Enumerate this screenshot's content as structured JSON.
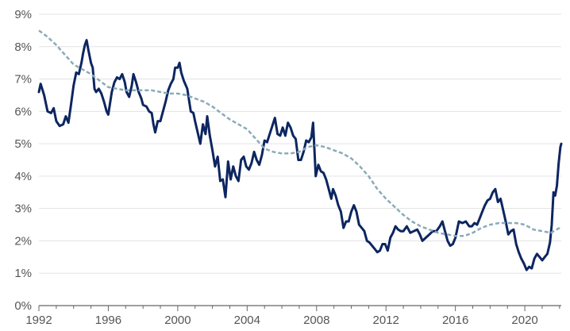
{
  "chart_data": {
    "type": "line",
    "title": "",
    "xlabel": "",
    "ylabel": "",
    "xlim": [
      1992,
      2022.1
    ],
    "ylim": [
      0,
      9
    ],
    "grid": "horizontal",
    "legend": "none",
    "y_ticks": [
      {
        "value": 0,
        "label": "0%"
      },
      {
        "value": 1,
        "label": "1%"
      },
      {
        "value": 2,
        "label": "2%"
      },
      {
        "value": 3,
        "label": "3%"
      },
      {
        "value": 4,
        "label": "4%"
      },
      {
        "value": 5,
        "label": "5%"
      },
      {
        "value": 6,
        "label": "6%"
      },
      {
        "value": 7,
        "label": "7%"
      },
      {
        "value": 8,
        "label": "8%"
      },
      {
        "value": 9,
        "label": "9%"
      }
    ],
    "x_ticks": [
      {
        "value": 1992,
        "label": "1992"
      },
      {
        "value": 1996,
        "label": "1996"
      },
      {
        "value": 2000,
        "label": "2000"
      },
      {
        "value": 2004,
        "label": "2004"
      },
      {
        "value": 2008,
        "label": "2008"
      },
      {
        "value": 2012,
        "label": "2012"
      },
      {
        "value": 2016,
        "label": "2016"
      },
      {
        "value": 2020,
        "label": "2020"
      }
    ],
    "series": [
      {
        "style": "solid",
        "color": "#0d2660",
        "points": [
          [
            1992.0,
            6.6
          ],
          [
            1992.1,
            6.85
          ],
          [
            1992.3,
            6.5
          ],
          [
            1992.5,
            6.0
          ],
          [
            1992.7,
            5.95
          ],
          [
            1992.85,
            6.1
          ],
          [
            1993.0,
            5.7
          ],
          [
            1993.2,
            5.55
          ],
          [
            1993.4,
            5.6
          ],
          [
            1993.55,
            5.85
          ],
          [
            1993.7,
            5.65
          ],
          [
            1993.85,
            6.2
          ],
          [
            1994.0,
            6.8
          ],
          [
            1994.15,
            7.2
          ],
          [
            1994.3,
            7.15
          ],
          [
            1994.45,
            7.5
          ],
          [
            1994.55,
            7.8
          ],
          [
            1994.65,
            8.05
          ],
          [
            1994.75,
            8.2
          ],
          [
            1994.85,
            7.9
          ],
          [
            1995.0,
            7.5
          ],
          [
            1995.1,
            7.35
          ],
          [
            1995.2,
            6.7
          ],
          [
            1995.3,
            6.6
          ],
          [
            1995.45,
            6.7
          ],
          [
            1995.6,
            6.55
          ],
          [
            1995.75,
            6.3
          ],
          [
            1995.9,
            6.0
          ],
          [
            1996.0,
            5.9
          ],
          [
            1996.2,
            6.6
          ],
          [
            1996.35,
            6.9
          ],
          [
            1996.5,
            7.05
          ],
          [
            1996.65,
            7.0
          ],
          [
            1996.8,
            7.15
          ],
          [
            1996.95,
            6.9
          ],
          [
            1997.05,
            6.6
          ],
          [
            1997.2,
            6.45
          ],
          [
            1997.35,
            6.8
          ],
          [
            1997.45,
            7.15
          ],
          [
            1997.6,
            6.9
          ],
          [
            1997.75,
            6.6
          ],
          [
            1997.9,
            6.4
          ],
          [
            1998.0,
            6.2
          ],
          [
            1998.2,
            6.15
          ],
          [
            1998.35,
            6.0
          ],
          [
            1998.5,
            5.95
          ],
          [
            1998.6,
            5.6
          ],
          [
            1998.7,
            5.35
          ],
          [
            1998.85,
            5.7
          ],
          [
            1999.0,
            5.7
          ],
          [
            1999.15,
            6.0
          ],
          [
            1999.3,
            6.3
          ],
          [
            1999.45,
            6.65
          ],
          [
            1999.6,
            6.85
          ],
          [
            1999.75,
            7.0
          ],
          [
            1999.85,
            7.35
          ],
          [
            2000.0,
            7.35
          ],
          [
            2000.1,
            7.5
          ],
          [
            2000.2,
            7.2
          ],
          [
            2000.35,
            6.95
          ],
          [
            2000.55,
            6.7
          ],
          [
            2000.75,
            6.0
          ],
          [
            2000.9,
            5.95
          ],
          [
            2001.0,
            5.7
          ],
          [
            2001.15,
            5.35
          ],
          [
            2001.3,
            5.0
          ],
          [
            2001.45,
            5.6
          ],
          [
            2001.6,
            5.3
          ],
          [
            2001.7,
            5.85
          ],
          [
            2001.85,
            5.25
          ],
          [
            2002.0,
            4.8
          ],
          [
            2002.15,
            4.3
          ],
          [
            2002.3,
            4.6
          ],
          [
            2002.45,
            3.85
          ],
          [
            2002.6,
            3.9
          ],
          [
            2002.75,
            3.35
          ],
          [
            2002.9,
            4.45
          ],
          [
            2003.05,
            3.9
          ],
          [
            2003.2,
            4.3
          ],
          [
            2003.35,
            4.0
          ],
          [
            2003.5,
            3.85
          ],
          [
            2003.65,
            4.5
          ],
          [
            2003.8,
            4.6
          ],
          [
            2003.95,
            4.3
          ],
          [
            2004.1,
            4.2
          ],
          [
            2004.25,
            4.4
          ],
          [
            2004.4,
            4.75
          ],
          [
            2004.55,
            4.5
          ],
          [
            2004.7,
            4.35
          ],
          [
            2004.85,
            4.65
          ],
          [
            2005.0,
            5.1
          ],
          [
            2005.15,
            5.05
          ],
          [
            2005.3,
            5.3
          ],
          [
            2005.45,
            5.55
          ],
          [
            2005.6,
            5.8
          ],
          [
            2005.75,
            5.3
          ],
          [
            2005.9,
            5.25
          ],
          [
            2006.05,
            5.5
          ],
          [
            2006.2,
            5.25
          ],
          [
            2006.35,
            5.65
          ],
          [
            2006.5,
            5.5
          ],
          [
            2006.65,
            5.25
          ],
          [
            2006.8,
            5.15
          ],
          [
            2006.95,
            4.5
          ],
          [
            2007.1,
            4.5
          ],
          [
            2007.25,
            4.75
          ],
          [
            2007.4,
            5.1
          ],
          [
            2007.55,
            5.05
          ],
          [
            2007.7,
            5.2
          ],
          [
            2007.8,
            5.65
          ],
          [
            2007.95,
            4.0
          ],
          [
            2008.1,
            4.35
          ],
          [
            2008.25,
            4.15
          ],
          [
            2008.4,
            4.1
          ],
          [
            2008.55,
            3.9
          ],
          [
            2008.7,
            3.6
          ],
          [
            2008.85,
            3.3
          ],
          [
            2008.95,
            3.6
          ],
          [
            2009.1,
            3.4
          ],
          [
            2009.25,
            3.1
          ],
          [
            2009.4,
            2.9
          ],
          [
            2009.55,
            2.4
          ],
          [
            2009.7,
            2.6
          ],
          [
            2009.85,
            2.6
          ],
          [
            2010.0,
            2.9
          ],
          [
            2010.15,
            3.1
          ],
          [
            2010.3,
            2.9
          ],
          [
            2010.45,
            2.5
          ],
          [
            2010.6,
            2.4
          ],
          [
            2010.75,
            2.3
          ],
          [
            2010.9,
            2.0
          ],
          [
            2011.05,
            1.95
          ],
          [
            2011.2,
            1.85
          ],
          [
            2011.35,
            1.75
          ],
          [
            2011.5,
            1.65
          ],
          [
            2011.65,
            1.7
          ],
          [
            2011.8,
            1.9
          ],
          [
            2011.95,
            1.9
          ],
          [
            2012.1,
            1.7
          ],
          [
            2012.25,
            2.1
          ],
          [
            2012.4,
            2.25
          ],
          [
            2012.55,
            2.45
          ],
          [
            2012.7,
            2.35
          ],
          [
            2012.85,
            2.3
          ],
          [
            2013.0,
            2.3
          ],
          [
            2013.2,
            2.45
          ],
          [
            2013.4,
            2.25
          ],
          [
            2013.6,
            2.3
          ],
          [
            2013.8,
            2.35
          ],
          [
            2013.95,
            2.2
          ],
          [
            2014.1,
            2.0
          ],
          [
            2014.3,
            2.1
          ],
          [
            2014.5,
            2.2
          ],
          [
            2014.7,
            2.3
          ],
          [
            2014.9,
            2.3
          ],
          [
            2015.1,
            2.45
          ],
          [
            2015.25,
            2.6
          ],
          [
            2015.4,
            2.3
          ],
          [
            2015.55,
            2.0
          ],
          [
            2015.7,
            1.85
          ],
          [
            2015.85,
            1.9
          ],
          [
            2016.0,
            2.1
          ],
          [
            2016.2,
            2.6
          ],
          [
            2016.4,
            2.55
          ],
          [
            2016.6,
            2.6
          ],
          [
            2016.8,
            2.45
          ],
          [
            2016.95,
            2.45
          ],
          [
            2017.1,
            2.55
          ],
          [
            2017.25,
            2.5
          ],
          [
            2017.4,
            2.7
          ],
          [
            2017.55,
            2.9
          ],
          [
            2017.7,
            3.1
          ],
          [
            2017.85,
            3.25
          ],
          [
            2018.0,
            3.3
          ],
          [
            2018.15,
            3.5
          ],
          [
            2018.3,
            3.6
          ],
          [
            2018.45,
            3.2
          ],
          [
            2018.6,
            3.3
          ],
          [
            2018.75,
            2.95
          ],
          [
            2018.9,
            2.6
          ],
          [
            2019.05,
            2.2
          ],
          [
            2019.2,
            2.3
          ],
          [
            2019.35,
            2.35
          ],
          [
            2019.5,
            1.9
          ],
          [
            2019.65,
            1.65
          ],
          [
            2019.8,
            1.45
          ],
          [
            2019.95,
            1.3
          ],
          [
            2020.1,
            1.1
          ],
          [
            2020.25,
            1.2
          ],
          [
            2020.4,
            1.15
          ],
          [
            2020.55,
            1.45
          ],
          [
            2020.7,
            1.6
          ],
          [
            2020.85,
            1.5
          ],
          [
            2021.0,
            1.4
          ],
          [
            2021.15,
            1.5
          ],
          [
            2021.3,
            1.6
          ],
          [
            2021.45,
            1.95
          ],
          [
            2021.55,
            2.5
          ],
          [
            2021.65,
            3.5
          ],
          [
            2021.75,
            3.4
          ],
          [
            2021.85,
            3.7
          ],
          [
            2021.95,
            4.4
          ],
          [
            2022.05,
            4.9
          ],
          [
            2022.1,
            5.0
          ]
        ]
      },
      {
        "style": "dashed",
        "color": "#8aabb8",
        "points": [
          [
            1992.0,
            8.5
          ],
          [
            1992.5,
            8.3
          ],
          [
            1993.0,
            8.05
          ],
          [
            1993.5,
            7.75
          ],
          [
            1994.0,
            7.45
          ],
          [
            1994.5,
            7.3
          ],
          [
            1995.0,
            7.15
          ],
          [
            1995.5,
            6.95
          ],
          [
            1996.0,
            6.75
          ],
          [
            1996.5,
            6.7
          ],
          [
            1997.0,
            6.65
          ],
          [
            1997.5,
            6.65
          ],
          [
            1998.0,
            6.65
          ],
          [
            1998.5,
            6.65
          ],
          [
            1999.0,
            6.6
          ],
          [
            1999.5,
            6.55
          ],
          [
            2000.0,
            6.55
          ],
          [
            2000.5,
            6.5
          ],
          [
            2001.0,
            6.4
          ],
          [
            2001.5,
            6.3
          ],
          [
            2002.0,
            6.15
          ],
          [
            2002.5,
            5.95
          ],
          [
            2003.0,
            5.75
          ],
          [
            2003.5,
            5.6
          ],
          [
            2004.0,
            5.45
          ],
          [
            2004.5,
            5.15
          ],
          [
            2005.0,
            4.85
          ],
          [
            2005.5,
            4.75
          ],
          [
            2006.0,
            4.7
          ],
          [
            2006.5,
            4.7
          ],
          [
            2007.0,
            4.75
          ],
          [
            2007.5,
            4.9
          ],
          [
            2008.0,
            4.95
          ],
          [
            2008.5,
            4.9
          ],
          [
            2009.0,
            4.8
          ],
          [
            2009.5,
            4.7
          ],
          [
            2010.0,
            4.55
          ],
          [
            2010.5,
            4.3
          ],
          [
            2011.0,
            4.0
          ],
          [
            2011.5,
            3.6
          ],
          [
            2012.0,
            3.3
          ],
          [
            2012.5,
            3.05
          ],
          [
            2013.0,
            2.8
          ],
          [
            2013.5,
            2.6
          ],
          [
            2014.0,
            2.45
          ],
          [
            2014.5,
            2.35
          ],
          [
            2015.0,
            2.25
          ],
          [
            2015.5,
            2.2
          ],
          [
            2016.0,
            2.15
          ],
          [
            2016.5,
            2.15
          ],
          [
            2017.0,
            2.25
          ],
          [
            2017.5,
            2.4
          ],
          [
            2018.0,
            2.5
          ],
          [
            2018.5,
            2.55
          ],
          [
            2019.0,
            2.55
          ],
          [
            2019.5,
            2.55
          ],
          [
            2020.0,
            2.5
          ],
          [
            2020.5,
            2.35
          ],
          [
            2021.0,
            2.3
          ],
          [
            2021.5,
            2.25
          ],
          [
            2022.0,
            2.4
          ],
          [
            2022.1,
            2.45
          ]
        ]
      }
    ]
  }
}
